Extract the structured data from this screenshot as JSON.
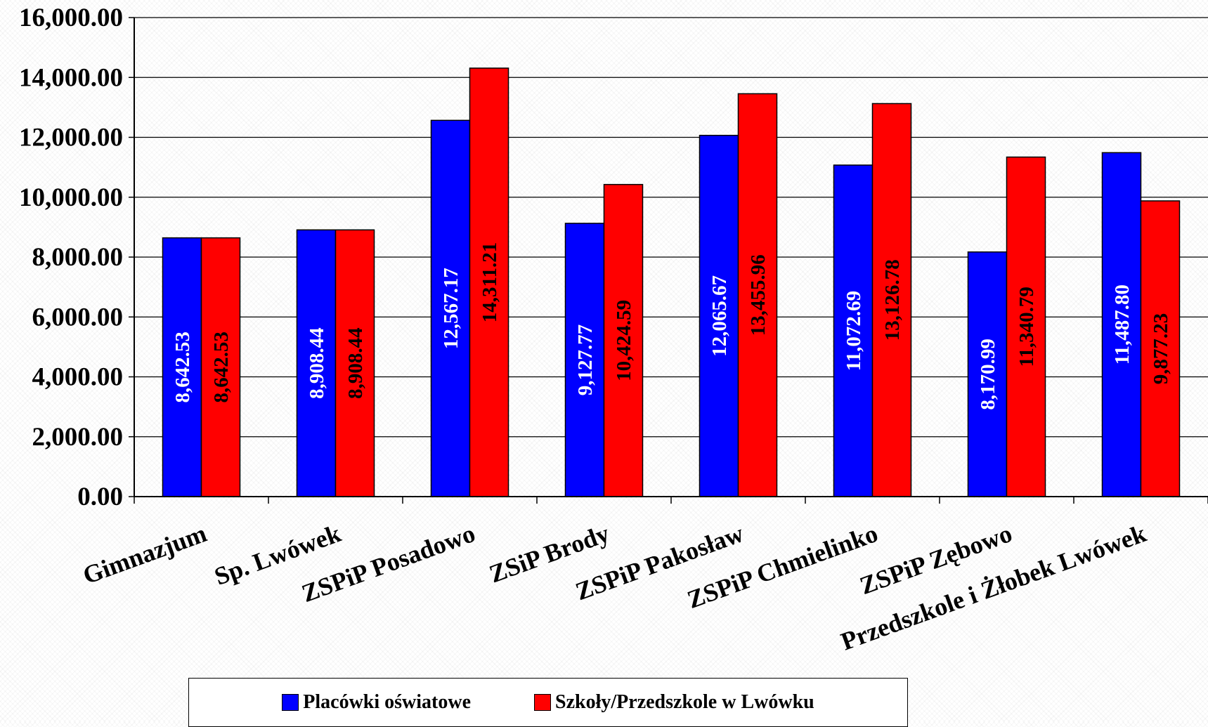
{
  "chart_data": {
    "type": "bar",
    "categories": [
      "Gimnazjum",
      "Sp. Lwówek",
      "ZSPiP Posadowo",
      "ZSiP Brody",
      "ZSPiP Pakosław",
      "ZSPiP Chmielinko",
      "ZSPiP Zębowo",
      "Przedszkole i Żłobek Lwówek"
    ],
    "series": [
      {
        "name": "Placówki oświatowe",
        "color": "#0000ff",
        "label_color": "#ffffff",
        "values": [
          8642.53,
          8908.44,
          12567.17,
          9127.77,
          12065.67,
          11072.69,
          8170.99,
          11487.8
        ],
        "labels": [
          "8,642.53",
          "8,908.44",
          "12,567.17",
          "9,127.77",
          "12,065.67",
          "11,072.69",
          "8,170.99",
          "11,487.80"
        ]
      },
      {
        "name": "Szkoły/Przedszkole w Lwówku",
        "color": "#ff0000",
        "label_color": "#000000",
        "values": [
          8642.53,
          8908.44,
          14311.21,
          10424.59,
          13455.96,
          13126.78,
          11340.79,
          9877.23
        ],
        "labels": [
          "8,642.53",
          "8,908.44",
          "14,311.21",
          "10,424.59",
          "13,455.96",
          "13,126.78",
          "11,340.79",
          "9,877.23"
        ]
      }
    ],
    "ylim": [
      0,
      16000
    ],
    "yticks": [
      0,
      2000,
      4000,
      6000,
      8000,
      10000,
      12000,
      14000,
      16000
    ],
    "ytick_labels": [
      "0.00",
      "2,000.00",
      "4,000.00",
      "6,000.00",
      "8,000.00",
      "10,000.00",
      "12,000.00",
      "14,000.00",
      "16,000.00"
    ],
    "grid": true,
    "legend_position": "bottom",
    "xlabel": "",
    "ylabel": "",
    "title": ""
  }
}
